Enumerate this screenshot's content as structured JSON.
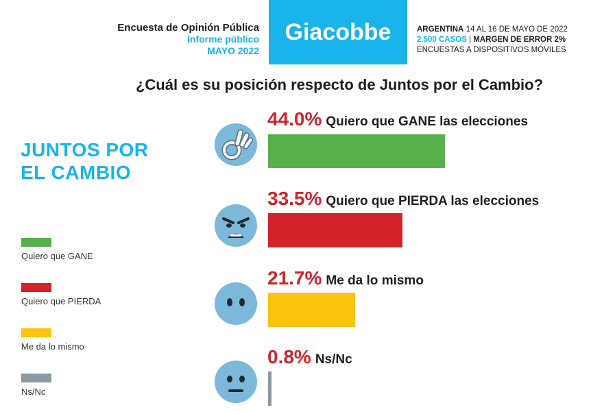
{
  "header": {
    "left_line1": "Encuesta de Opinión Pública",
    "left_line2": "Informe público",
    "left_line3": "MAYO 2022",
    "brand": "Giacobbe",
    "right_country": "ARGENTINA",
    "right_dates": "14 AL 16 DE MAYO DE 2022",
    "right_cases": "2.500 CASOS",
    "right_sep": "|",
    "right_margin": "MARGEN DE ERROR 2%",
    "right_method": "ENCUESTAS A DISPOSITIVOS MÓVILES"
  },
  "question": "¿Cuál es su posición respecto de Juntos por el Cambio?",
  "party": {
    "line1": "JUNTOS POR",
    "line2": "EL CAMBIO"
  },
  "colors": {
    "brand": "#18b4ea",
    "percent": "#d2232a",
    "gane": "#57b04b",
    "pierda": "#d2232a",
    "mismo": "#fcc40e",
    "nsnc": "#8b97a1"
  },
  "legend": [
    {
      "label": "Quiero que GANE",
      "color": "#57b04b"
    },
    {
      "label": "Quiero que PIERDA",
      "color": "#d2232a"
    },
    {
      "label": "Me da lo mismo",
      "color": "#fcc40e"
    },
    {
      "label": "Ns/Nc",
      "color": "#8b97a1"
    }
  ],
  "chart_data": {
    "type": "bar",
    "orientation": "horizontal",
    "title": "¿Cuál es su posición respecto de Juntos por el Cambio?",
    "categories": [
      "Quiero que GANE las elecciones",
      "Quiero que PIERDA las elecciones",
      "Me da lo mismo",
      "Ns/Nc"
    ],
    "values": [
      44.0,
      33.5,
      21.7,
      0.8
    ],
    "value_labels": [
      "44.0%",
      "33.5%",
      "21.7%",
      "0.8%"
    ],
    "colors": [
      "#57b04b",
      "#d2232a",
      "#fcc40e",
      "#8b97a1"
    ],
    "icons": [
      "ok-hand-icon",
      "angry-face-icon",
      "blank-face-icon",
      "neutral-face-icon"
    ],
    "grid": false,
    "legend_position": "left"
  }
}
